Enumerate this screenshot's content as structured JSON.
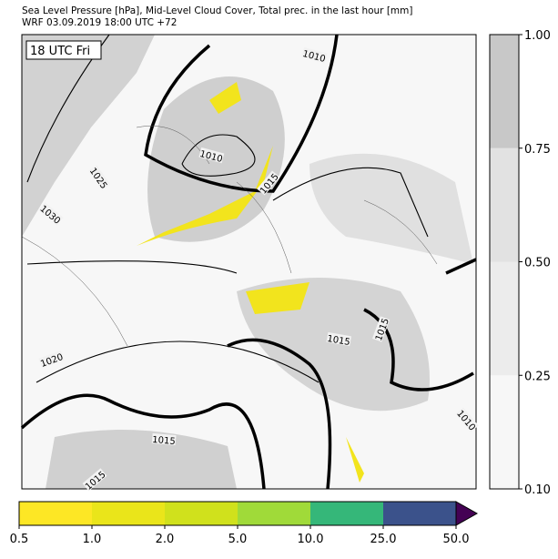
{
  "header": {
    "title": "Sea Level Pressure [hPa], Mid-Level Cloud Cover, Total prec. in the last hour [mm]",
    "subtitle": "WRF 03.09.2019 18:00 UTC +72"
  },
  "map": {
    "time_label": "18 UTC Fri",
    "contour_labels": [
      1010,
      1010,
      1015,
      1025,
      1030,
      1020,
      1015,
      1015,
      1015,
      1010,
      1015
    ]
  },
  "cloud_colorbar": {
    "ticks": [
      {
        "value": 0.1,
        "label": "0.10"
      },
      {
        "value": 0.25,
        "label": "0.25"
      },
      {
        "value": 0.5,
        "label": "0.50"
      },
      {
        "value": 0.75,
        "label": "0.75"
      },
      {
        "value": 1,
        "label": "1.00"
      }
    ],
    "colors": [
      "#f7f7f7",
      "#ececec",
      "#e2e2e2",
      "#c8c8c8"
    ]
  },
  "precip_colorbar": {
    "ticks": [
      {
        "value": 0.5,
        "label": "0.5"
      },
      {
        "value": 1,
        "label": "1.0"
      },
      {
        "value": 2,
        "label": "2.0"
      },
      {
        "value": 5,
        "label": "5.0"
      },
      {
        "value": 10,
        "label": "10.0"
      },
      {
        "value": 25,
        "label": "25.0"
      },
      {
        "value": 50,
        "label": "50.0"
      }
    ],
    "colors": [
      "#fde725",
      "#eae51a",
      "#d0e11c",
      "#a0da39",
      "#35b779",
      "#3b528b"
    ],
    "extend_color": "#440154"
  }
}
